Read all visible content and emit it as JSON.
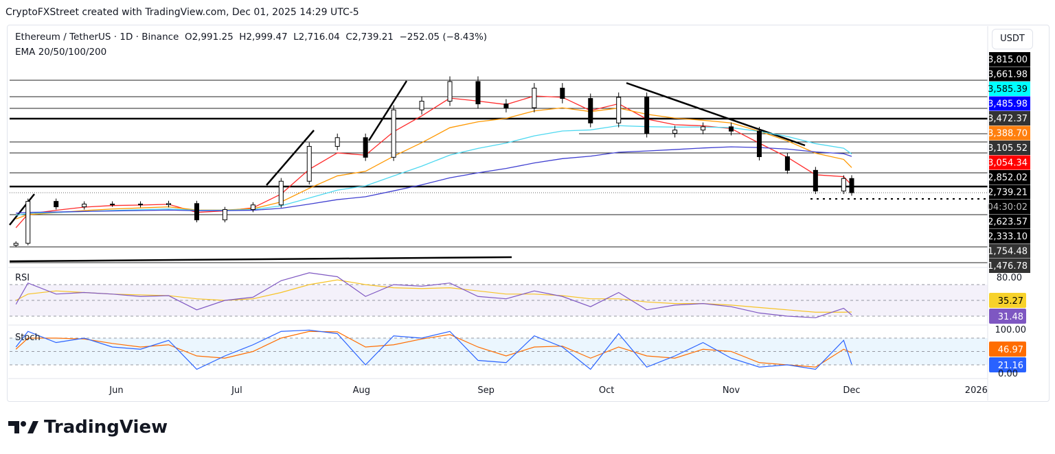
{
  "credit": "CryptoFXStreet created with TradingView.com, Dec 01, 2025 14:29 UTC-5",
  "legend": {
    "symbol": "Ethereum / TetherUS · 1D · Binance",
    "ohlc": "O2,991.25  H2,999.47  L2,716.04  C2,739.21  −252.05 (−8.43%)",
    "indicator": "EMA 20/50/100/200"
  },
  "currency_button": "USDT",
  "pane_labels": {
    "rsi": "RSI",
    "stoch": "Stoch"
  },
  "price_labels": [
    {
      "text": "3,815.00",
      "bg": "#000000",
      "fg": "#ffffff"
    },
    {
      "text": "3,661.98",
      "bg": "#000000",
      "fg": "#ffffff"
    },
    {
      "text": "3,585.39",
      "bg": "#00ffff",
      "fg": "#000000"
    },
    {
      "text": "3,485.98",
      "bg": "#0000ff",
      "fg": "#ffffff"
    },
    {
      "text": "3,472.37",
      "bg": "#333333",
      "fg": "#ffffff"
    },
    {
      "text": "3,388.70",
      "bg": "#ff7f0e",
      "fg": "#ffffff"
    },
    {
      "text": "3,105.52",
      "bg": "#333333",
      "fg": "#ffffff"
    },
    {
      "text": "3,054.34",
      "bg": "#ff0000",
      "fg": "#ffffff"
    },
    {
      "text": "2,852.02",
      "bg": "#000000",
      "fg": "#ffffff"
    },
    {
      "text": "2,739.21",
      "bg": "#000000",
      "fg": "#ffffff"
    },
    {
      "text": "04:30:02",
      "bg": "#000000",
      "fg": "#bbbbbb"
    },
    {
      "text": "2,623.57",
      "bg": "#000000",
      "fg": "#ffffff"
    },
    {
      "text": "2,333.10",
      "bg": "#000000",
      "fg": "#ffffff"
    },
    {
      "text": "1,754.48",
      "bg": "#333333",
      "fg": "#ffffff"
    },
    {
      "text": "1,476.78",
      "bg": "#333333",
      "fg": "#ffffff"
    }
  ],
  "rsi_axis": {
    "level": "80.00",
    "values": [
      {
        "text": "35.27",
        "bg": "#f7d22b",
        "fg": "#000000"
      },
      {
        "text": "31.48",
        "bg": "#7e57c2",
        "fg": "#ffffff"
      }
    ]
  },
  "stoch_axis": {
    "level": "100.00",
    "values": [
      {
        "text": "46.97",
        "bg": "#ff6d00",
        "fg": "#ffffff"
      },
      {
        "text": "21.16",
        "bg": "#2962ff",
        "fg": "#ffffff"
      }
    ],
    "bottom": "0.00"
  },
  "brand": "TradingView",
  "chart_data": {
    "type": "candlestick",
    "title": "Ethereum / TetherUS · 1D · Binance",
    "ylim": [
      1442,
      5220
    ],
    "x_ticks": [
      {
        "label": "Jun",
        "date": "2025-06-01"
      },
      {
        "label": "Jul",
        "date": "2025-07-01"
      },
      {
        "label": "Aug",
        "date": "2025-08-01"
      },
      {
        "label": "Sep",
        "date": "2025-09-01"
      },
      {
        "label": "Oct",
        "date": "2025-10-01"
      },
      {
        "label": "Nov",
        "date": "2025-11-01"
      },
      {
        "label": "Dec",
        "date": "2025-12-01"
      },
      {
        "label": "2026",
        "date": "2026-01-01"
      }
    ],
    "dates": [
      "2025-05-07",
      "2025-05-10",
      "2025-05-17",
      "2025-05-24",
      "2025-05-31",
      "2025-06-07",
      "2025-06-14",
      "2025-06-21",
      "2025-06-28",
      "2025-07-05",
      "2025-07-12",
      "2025-07-19",
      "2025-07-26",
      "2025-08-02",
      "2025-08-09",
      "2025-08-16",
      "2025-08-23",
      "2025-08-30",
      "2025-09-06",
      "2025-09-13",
      "2025-09-20",
      "2025-09-27",
      "2025-10-04",
      "2025-10-11",
      "2025-10-18",
      "2025-10-25",
      "2025-11-01",
      "2025-11-08",
      "2025-11-15",
      "2025-11-22",
      "2025-11-29",
      "2025-12-01"
    ],
    "close": [
      1810,
      2580,
      2480,
      2530,
      2530,
      2520,
      2540,
      2240,
      2430,
      2515,
      2950,
      3590,
      3750,
      3390,
      4260,
      4420,
      4780,
      4370,
      4300,
      4660,
      4470,
      4020,
      4490,
      3830,
      3890,
      3950,
      3870,
      3400,
      3150,
      2770,
      3000,
      2739
    ],
    "ema_periods": [
      20,
      50,
      100,
      200
    ],
    "ema_colors": [
      "#ff2a2a",
      "#ff9800",
      "#4dd8f0",
      "#3f3fd0"
    ],
    "rsi": [
      45,
      72,
      58,
      60,
      58,
      55,
      56,
      38,
      50,
      54,
      75,
      85,
      80,
      55,
      70,
      68,
      72,
      55,
      52,
      62,
      55,
      42,
      60,
      38,
      44,
      46,
      42,
      34,
      30,
      28,
      40,
      31.48
    ],
    "rsi_signal": [
      50,
      58,
      62,
      60,
      58,
      57,
      56,
      52,
      50,
      52,
      60,
      70,
      76,
      70,
      66,
      65,
      66,
      62,
      58,
      58,
      56,
      52,
      52,
      48,
      46,
      46,
      44,
      41,
      38,
      35,
      35,
      35.27
    ],
    "stoch_k": [
      60,
      95,
      70,
      80,
      60,
      55,
      75,
      10,
      40,
      65,
      95,
      98,
      90,
      20,
      85,
      80,
      95,
      30,
      25,
      85,
      60,
      10,
      90,
      15,
      40,
      70,
      35,
      15,
      20,
      10,
      75,
      21.16
    ],
    "stoch_d": [
      55,
      80,
      80,
      78,
      68,
      60,
      65,
      40,
      35,
      50,
      80,
      95,
      94,
      60,
      65,
      78,
      88,
      60,
      40,
      60,
      62,
      35,
      60,
      40,
      35,
      55,
      50,
      25,
      20,
      15,
      55,
      46.97
    ],
    "rsi_levels": [
      70,
      50,
      30
    ],
    "stoch_levels": [
      80,
      50,
      20
    ]
  }
}
